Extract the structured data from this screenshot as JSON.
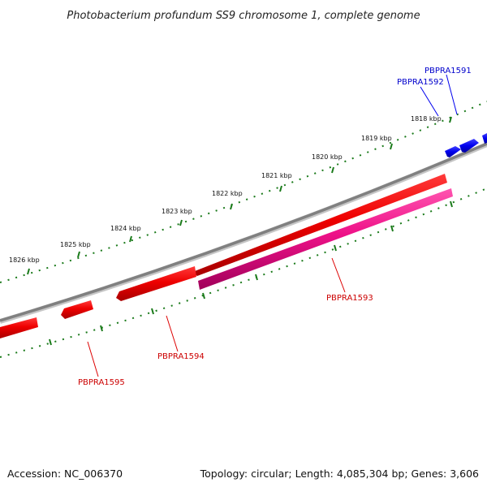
{
  "title": "Photobacterium profundum SS9 chromosome 1, complete genome",
  "footer": {
    "accession": "Accession: NC_006370",
    "stats": "Topology: circular; Length: 4,085,304 bp; Genes: 3,606"
  },
  "ticks": [
    "1818 kbp",
    "1819 kbp",
    "1820 kbp",
    "1821 kbp",
    "1822 kbp",
    "1823 kbp",
    "1824 kbp",
    "1825 kbp",
    "1826 kbp"
  ],
  "genes": [
    {
      "id": "PBPRA1591",
      "strand": "forward",
      "color": "#0000ee"
    },
    {
      "id": "PBPRA1592",
      "strand": "forward",
      "color": "#0000ee"
    },
    {
      "id": "PBPRA1593",
      "strand": "reverse",
      "color": "#ee1188"
    },
    {
      "id": "PBPRA1594",
      "strand": "reverse",
      "color": "#ee0000"
    },
    {
      "id": "PBPRA1595",
      "strand": "reverse",
      "color": "#ee0000"
    }
  ],
  "colors": {
    "backbone": "#808080",
    "ticks": "#1a7a1a",
    "forward_label": "#0000cc",
    "reverse_label": "#cc0000"
  }
}
